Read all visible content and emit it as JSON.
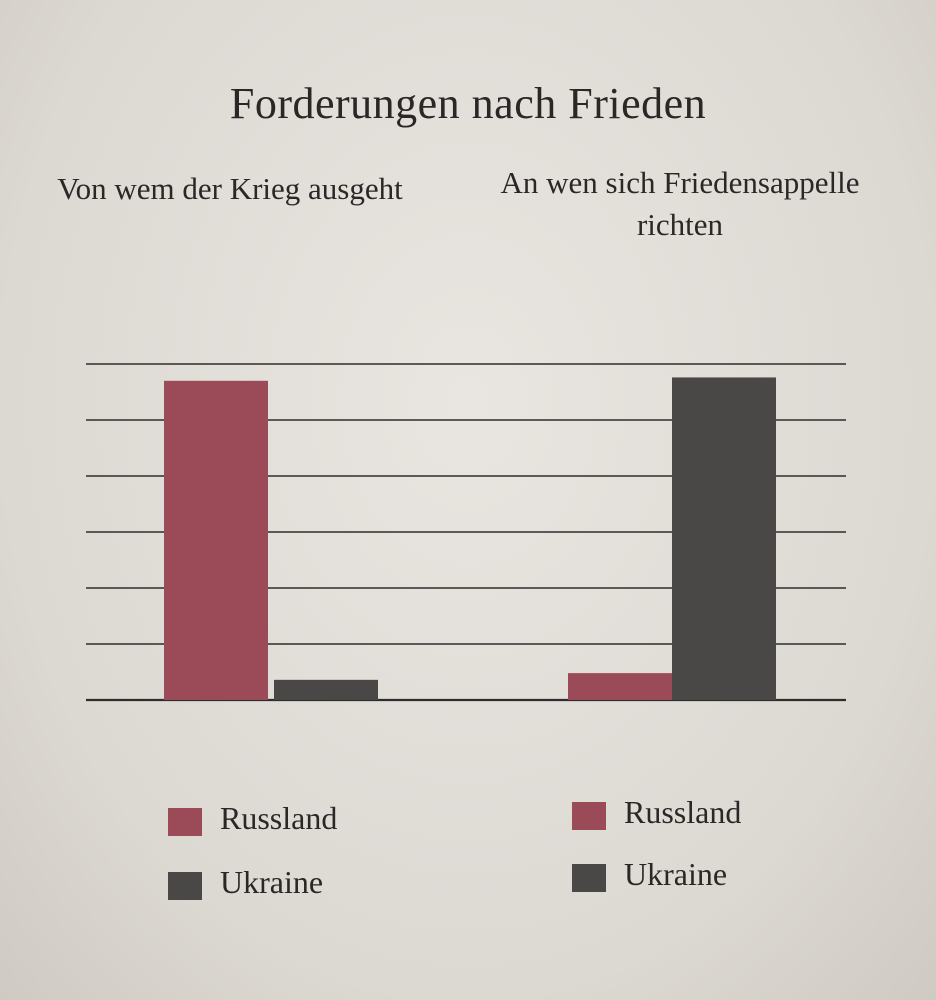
{
  "chart_data": [
    {
      "type": "bar",
      "title": "Forderungen nach Frieden",
      "subtitle": "Von wem der Krieg ausgeht",
      "categories": [
        "Russland",
        "Ukraine"
      ],
      "values": [
        95,
        6
      ],
      "ylim": [
        0,
        100
      ],
      "grid": true,
      "legend": [
        "Russland",
        "Ukraine"
      ],
      "colors": [
        "#9b4a58",
        "#4a4747"
      ]
    },
    {
      "type": "bar",
      "subtitle": "An wen sich Friedensappelle richten",
      "categories": [
        "Russland",
        "Ukraine"
      ],
      "values": [
        8,
        96
      ],
      "ylim": [
        0,
        100
      ],
      "grid": true,
      "legend": [
        "Russland",
        "Ukraine"
      ],
      "colors": [
        "#9b4a58",
        "#4a4747"
      ]
    }
  ]
}
